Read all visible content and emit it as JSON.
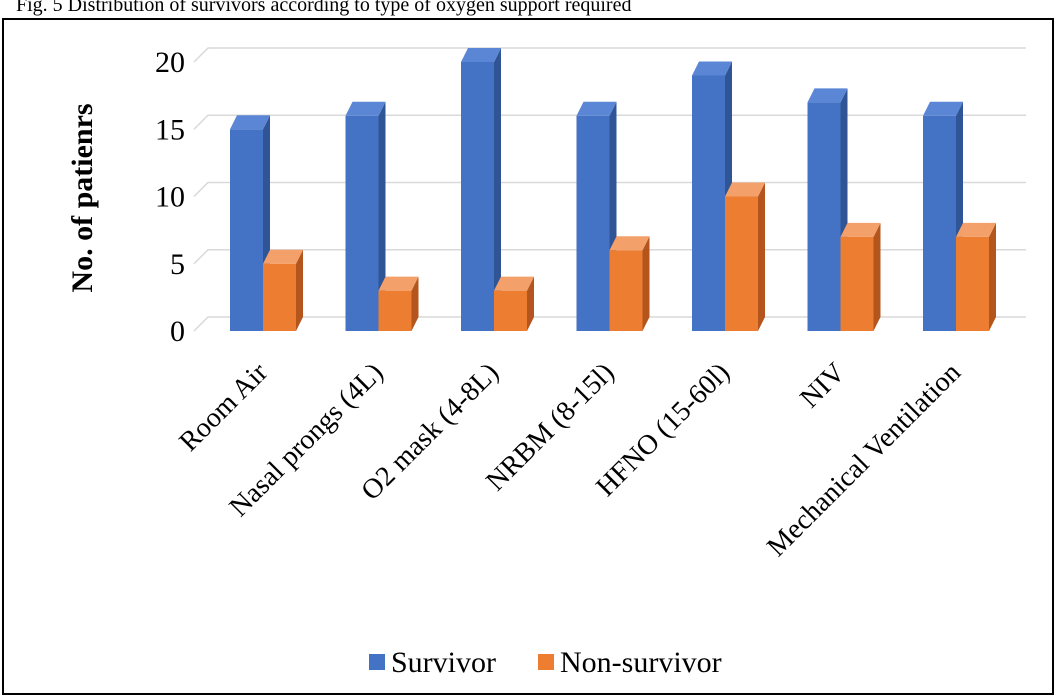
{
  "header_text": "Fig. 5 Distribution of survivors according to type of oxygen support required",
  "colors": {
    "survivor": "#4472C4",
    "survivor_side": "#2F5597",
    "survivor_top": "#5B86D6",
    "nonsurvivor": "#ED7D31",
    "nonsurvivor_side": "#B3551C",
    "nonsurvivor_top": "#F4A06A",
    "grid": "#D9D9D9"
  },
  "chart_data": {
    "type": "bar",
    "title": "",
    "xlabel": "",
    "ylabel": "No. of patienrs",
    "ylim": [
      0,
      20
    ],
    "yticks": [
      "0",
      "5",
      "10",
      "15",
      "20"
    ],
    "grid": true,
    "legend_position": "bottom",
    "categories": [
      "Room Air",
      "Nasal prongs (4L)",
      "O2 mask (4-8L)",
      "NRBM (8-15l)",
      "HFNO (15-60l)",
      "NIV",
      "Mechanical Ventilation"
    ],
    "series": [
      {
        "name": "Survivor",
        "values": [
          15,
          16,
          20,
          16,
          19,
          17,
          16
        ]
      },
      {
        "name": "Non-survivor",
        "values": [
          5,
          3,
          3,
          6,
          10,
          7,
          7
        ]
      }
    ]
  }
}
